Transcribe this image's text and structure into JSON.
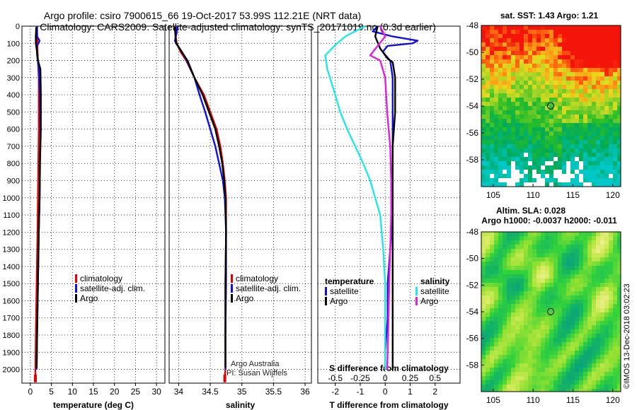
{
  "header": {
    "line1": "Argo profile: csiro 7900615_66 19-Oct-2017 53.99S 112.21E (NRT data)",
    "line2": "Climatology: CARS2009. Satellite-adjusted climatology: synTS_20171019.nc (0.3d earlier)"
  },
  "colors": {
    "climatology": "#e00000",
    "satellite": "#1010e0",
    "argo": "#000000",
    "sat_cyan": "#20e8e8",
    "sal_magenta": "#e020e0",
    "grid": "#000000"
  },
  "credits": {
    "line1": "Argo Australia",
    "line2": "PI: Susan Wijffels",
    "stamp": "©IMOS 13-Dec-2018 03:02:23"
  },
  "chart_data": [
    {
      "id": "temperature",
      "type": "line",
      "xlabel": "temperature (deg C)",
      "ylabel": "",
      "xlim": [
        -2,
        32
      ],
      "ylim": [
        2080,
        0
      ],
      "xticks": [
        0,
        5,
        10,
        15,
        20,
        25,
        30
      ],
      "xtick_labels": [
        "0",
        "5",
        "10",
        "15",
        "20",
        "25",
        "30"
      ],
      "yticks": [
        0,
        100,
        200,
        300,
        400,
        500,
        600,
        700,
        800,
        900,
        1000,
        1100,
        1200,
        1300,
        1400,
        1500,
        1600,
        1700,
        1800,
        1900,
        2000
      ],
      "legend": {
        "placement": "bottom-right",
        "entries": [
          {
            "label": "climatology",
            "color": "#e00000"
          },
          {
            "label": "satellite-adj. clim.",
            "color": "#1010e0"
          },
          {
            "label": "Argo",
            "color": "#000000"
          }
        ]
      },
      "series": [
        {
          "name": "climatology",
          "color": "#e00000",
          "x": [
            1.6,
            1.6,
            1.7,
            1.7,
            1.8,
            2.0,
            2.0,
            2.0,
            1.9,
            1.8,
            1.7,
            1.5,
            1.3,
            1.2,
            1.2
          ],
          "y": [
            0,
            50,
            100,
            150,
            200,
            300,
            400,
            600,
            800,
            1000,
            1200,
            1500,
            1800,
            2000,
            2060
          ]
        },
        {
          "name": "satellite-adj. clim.",
          "color": "#1010e0",
          "x": [
            1.6,
            1.6,
            2.2,
            1.5,
            1.6,
            2.0,
            2.3,
            2.4,
            2.3,
            2.2,
            2.0,
            1.8,
            1.6,
            1.5
          ],
          "y": [
            0,
            60,
            85,
            120,
            170,
            250,
            400,
            600,
            800,
            1000,
            1200,
            1500,
            1800,
            2000
          ]
        },
        {
          "name": "Argo",
          "color": "#000000",
          "x": [
            1.4,
            1.3,
            1.3,
            1.6,
            1.8,
            2.4,
            2.5,
            2.5,
            2.3,
            2.2,
            2.0,
            1.8,
            1.6,
            1.5
          ],
          "y": [
            5,
            60,
            100,
            150,
            200,
            250,
            400,
            600,
            800,
            1000,
            1200,
            1500,
            1800,
            1990
          ]
        }
      ]
    },
    {
      "id": "salinity",
      "type": "line",
      "xlabel": "salinity",
      "xlim": [
        33.85,
        36.1
      ],
      "ylim": [
        2080,
        0
      ],
      "xticks": [
        34,
        34.5,
        35,
        35.5,
        36
      ],
      "xtick_labels": [
        "34",
        "34.5",
        "35",
        "35.5",
        "36"
      ],
      "yticks": [
        0,
        100,
        200,
        300,
        400,
        500,
        600,
        700,
        800,
        900,
        1000,
        1100,
        1200,
        1300,
        1400,
        1500,
        1600,
        1700,
        1800,
        1900,
        2000
      ],
      "legend": {
        "placement": "bottom-right",
        "entries": [
          {
            "label": "climatology",
            "color": "#e00000"
          },
          {
            "label": "satellite-adj. clim.",
            "color": "#1010e0"
          },
          {
            "label": "Argo",
            "color": "#000000"
          }
        ]
      },
      "series": [
        {
          "name": "climatology",
          "color": "#e00000",
          "x": [
            33.94,
            33.95,
            33.97,
            34.03,
            34.12,
            34.25,
            34.4,
            34.5,
            34.6,
            34.66,
            34.7,
            34.73,
            34.75,
            34.75,
            34.74,
            34.74,
            34.73
          ],
          "y": [
            0,
            50,
            100,
            150,
            200,
            300,
            400,
            500,
            600,
            700,
            800,
            900,
            1000,
            1200,
            1500,
            2000,
            2060
          ]
        },
        {
          "name": "satellite-adj. clim.",
          "color": "#1010e0",
          "x": [
            33.98,
            33.97,
            33.94,
            34.05,
            34.13,
            34.25,
            34.33,
            34.42,
            34.5,
            34.58,
            34.64,
            34.7,
            34.73,
            34.75,
            34.75,
            34.74,
            34.74
          ],
          "y": [
            0,
            40,
            85,
            150,
            200,
            300,
            400,
            500,
            600,
            700,
            800,
            900,
            1000,
            1200,
            1500,
            1800,
            2000
          ]
        },
        {
          "name": "Argo",
          "color": "#000000",
          "x": [
            33.94,
            33.95,
            33.96,
            34.05,
            34.14,
            34.25,
            34.38,
            34.48,
            34.58,
            34.64,
            34.69,
            34.72,
            34.74,
            34.75,
            34.74,
            34.74
          ],
          "y": [
            5,
            60,
            100,
            150,
            200,
            300,
            400,
            500,
            600,
            700,
            800,
            900,
            1000,
            1200,
            1500,
            1990
          ]
        }
      ]
    },
    {
      "id": "difference",
      "type": "line",
      "xlabel": "T difference from climatology",
      "top_label": "S difference from climatology",
      "xlim": [
        -2.7,
        3.0
      ],
      "ylim": [
        2080,
        0
      ],
      "xticks": [
        -2,
        -1,
        0,
        1,
        2
      ],
      "xtick_labels": [
        "-2",
        "-1",
        "0",
        "1",
        "2"
      ],
      "sticks": [
        -0.5,
        -0.25,
        0,
        0.25,
        0.5
      ],
      "stick_labels": [
        "-0.5",
        "-0.25",
        "0",
        "0.25",
        "0.5"
      ],
      "yticks": [
        0,
        100,
        200,
        300,
        400,
        500,
        600,
        700,
        800,
        900,
        1000,
        1100,
        1200,
        1300,
        1400,
        1500,
        1600,
        1700,
        1800,
        1900,
        2000
      ],
      "legend_groups": [
        {
          "title": "temperature",
          "entries": [
            {
              "label": "satellite",
              "color": "#1010e0"
            },
            {
              "label": "Argo",
              "color": "#000000"
            }
          ]
        },
        {
          "title": "salinity",
          "entries": [
            {
              "label": "satellite",
              "color": "#20e8e8"
            },
            {
              "label": "Argo",
              "color": "#e020e0"
            }
          ]
        }
      ],
      "series": [
        {
          "name": "temperature satellite",
          "color": "#1010e0",
          "x": [
            -0.3,
            -0.5,
            0.3,
            1.3,
            1.1,
            0.1,
            -0.1,
            0.2,
            0.3,
            0.3,
            0.3,
            0.3,
            0.3,
            0.2,
            0.1,
            0.1,
            0.0,
            0.0
          ],
          "y": [
            0,
            30,
            60,
            85,
            100,
            115,
            150,
            200,
            300,
            500,
            700,
            900,
            1100,
            1300,
            1500,
            1700,
            1900,
            2000
          ]
        },
        {
          "name": "temperature Argo",
          "color": "#000000",
          "x": [
            -0.3,
            -0.4,
            -0.2,
            0.1,
            0.3,
            0.4,
            0.4,
            0.3,
            0.3,
            0.3,
            0.3,
            0.3,
            0.3,
            0.3,
            0.3
          ],
          "y": [
            0,
            60,
            130,
            190,
            210,
            300,
            500,
            700,
            900,
            1100,
            1300,
            1500,
            1700,
            1900,
            2000
          ]
        },
        {
          "name": "salinity satellite",
          "color": "#20e8e8",
          "x": [
            -0.2,
            -0.4,
            -0.5,
            -0.6,
            -0.58,
            -0.5,
            -0.45,
            -0.38,
            -0.3,
            -0.22,
            -0.15,
            -0.1,
            -0.05,
            -0.02,
            0.0,
            0.0,
            0.0
          ],
          "y": [
            0,
            60,
            110,
            170,
            250,
            400,
            500,
            600,
            700,
            800,
            900,
            1000,
            1100,
            1300,
            1500,
            1800,
            2000
          ]
        },
        {
          "name": "salinity Argo",
          "color": "#e020e0",
          "x": [
            -0.05,
            0.0,
            -0.15,
            -0.05,
            0.0,
            0.02,
            0.05,
            0.06,
            0.06,
            0.05,
            0.04,
            0.03,
            0.02
          ],
          "y": [
            0,
            60,
            170,
            200,
            300,
            500,
            700,
            900,
            1100,
            1300,
            1500,
            1800,
            2000
          ]
        }
      ]
    },
    {
      "id": "sst-map",
      "type": "heatmap",
      "title": "sat. SST: 1.43 Argo: 1.21",
      "xlim": [
        103.5,
        121
      ],
      "ylim": [
        -60,
        -48
      ],
      "xticks": [
        105,
        110,
        115,
        120
      ],
      "xtick_labels": [
        "105",
        "110",
        "115",
        "120"
      ],
      "yticks": [
        -48,
        -50,
        -52,
        -54,
        -56,
        -58
      ],
      "ytick_labels": [
        "-48",
        "-50",
        "-52",
        "-54",
        "-56",
        "-58"
      ],
      "marker": {
        "lon": 112.21,
        "lat": -53.99
      }
    },
    {
      "id": "sla-map",
      "type": "heatmap",
      "title": "Altim. SLA: 0.028",
      "subtitle": "Argo h1000: -0.0037 h2000: -0.011",
      "xlim": [
        103.5,
        121
      ],
      "ylim": [
        -60,
        -48
      ],
      "xticks": [
        105,
        110,
        115,
        120
      ],
      "xtick_labels": [
        "105",
        "110",
        "115",
        "120"
      ],
      "yticks": [
        -48,
        -50,
        -52,
        -54,
        -56,
        -58
      ],
      "ytick_labels": [
        "-48",
        "-50",
        "-52",
        "-54",
        "-56",
        "-58"
      ],
      "marker": {
        "lon": 112.21,
        "lat": -53.99
      }
    }
  ]
}
